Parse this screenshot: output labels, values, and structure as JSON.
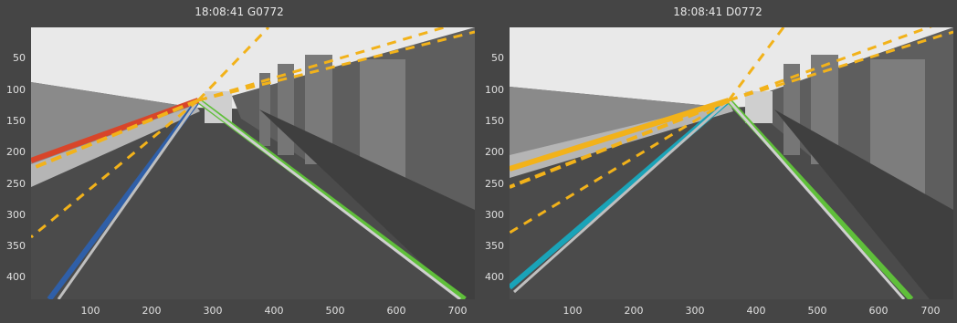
{
  "panels": [
    {
      "title": "18:08:41 G0772",
      "y_ticks": [
        "50",
        "100",
        "150",
        "200",
        "250",
        "300",
        "350",
        "400"
      ],
      "x_ticks": [
        "100",
        "200",
        "300",
        "400",
        "500",
        "600",
        "700"
      ]
    },
    {
      "title": "18:08:41 D0772",
      "y_ticks": [
        "50",
        "100",
        "150",
        "200",
        "250",
        "300",
        "350",
        "400"
      ],
      "x_ticks": [
        "100",
        "200",
        "300",
        "400",
        "500",
        "600",
        "700"
      ]
    }
  ],
  "colors": {
    "sky": "#e9e9e9",
    "road": "#4b4b4b",
    "pillar": "#6f6f6f",
    "lane_blue": "#2f5fa8",
    "lane_cyan": "#1aa3b8",
    "lane_green": "#5fbf3a",
    "lane_red": "#d8452a",
    "dash_yellow": "#f2b21a"
  }
}
